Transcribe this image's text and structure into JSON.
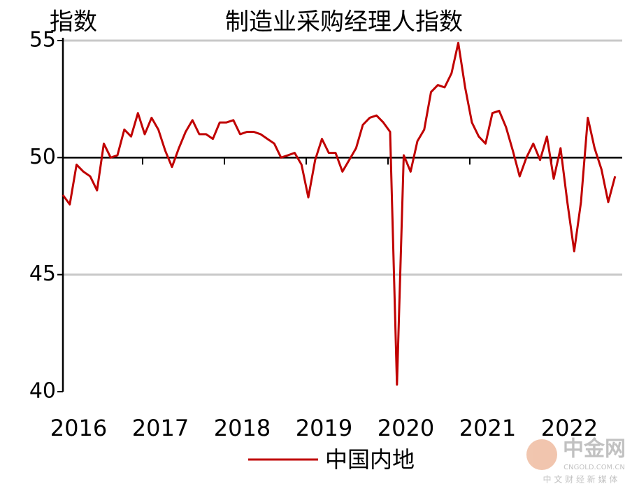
{
  "chart_data": {
    "type": "line",
    "title": "制造业采购经理人指数",
    "y_label": "指数",
    "categories": [
      null,
      null,
      "2016",
      null,
      null,
      null,
      null,
      null,
      null,
      null,
      null,
      null,
      null,
      null,
      "2017",
      null,
      null,
      null,
      null,
      null,
      null,
      null,
      null,
      null,
      null,
      null,
      "2018",
      null,
      null,
      null,
      null,
      null,
      null,
      null,
      null,
      null,
      null,
      null,
      "2019",
      null,
      null,
      null,
      null,
      null,
      null,
      null,
      null,
      null,
      null,
      null,
      "2020",
      null,
      null,
      null,
      null,
      null,
      null,
      null,
      null,
      null,
      null,
      null,
      "2021",
      null,
      null,
      null,
      null,
      null,
      null,
      null,
      null,
      null,
      null,
      null,
      "2022",
      null,
      null,
      null,
      null,
      null,
      null,
      null
    ],
    "series": [
      {
        "name": "中国内地",
        "color": "#c00000",
        "values": [
          48.4,
          48.0,
          49.7,
          49.4,
          49.2,
          48.6,
          50.6,
          50.0,
          50.1,
          51.2,
          50.9,
          51.9,
          51.0,
          51.7,
          51.2,
          50.3,
          49.6,
          50.4,
          51.1,
          51.6,
          51.0,
          51.0,
          50.8,
          51.5,
          51.5,
          51.6,
          51.0,
          51.1,
          51.1,
          51.0,
          50.8,
          50.6,
          50.0,
          50.1,
          50.2,
          49.7,
          48.3,
          49.9,
          50.8,
          50.2,
          50.2,
          49.4,
          49.9,
          50.4,
          51.4,
          51.7,
          51.8,
          51.5,
          51.1,
          40.3,
          50.1,
          49.4,
          50.7,
          51.2,
          52.8,
          53.1,
          53.0,
          53.6,
          54.9,
          53.0,
          51.5,
          50.9,
          50.6,
          51.9,
          52.0,
          51.3,
          50.3,
          49.2,
          50.0,
          50.6,
          49.9,
          50.9,
          49.1,
          50.4,
          48.1,
          46.0,
          48.1,
          51.7,
          50.4,
          49.5,
          48.1,
          49.2
        ]
      }
    ],
    "ylim": [
      40,
      55
    ],
    "yticks": [
      40,
      45,
      50,
      55
    ],
    "grid": true,
    "reference_line": 50,
    "legend": "bottom",
    "watermark": {
      "name": "中金网",
      "site": "CNGOLD.COM.CN",
      "slogan": "中 文 财 经 新 媒 体"
    }
  }
}
